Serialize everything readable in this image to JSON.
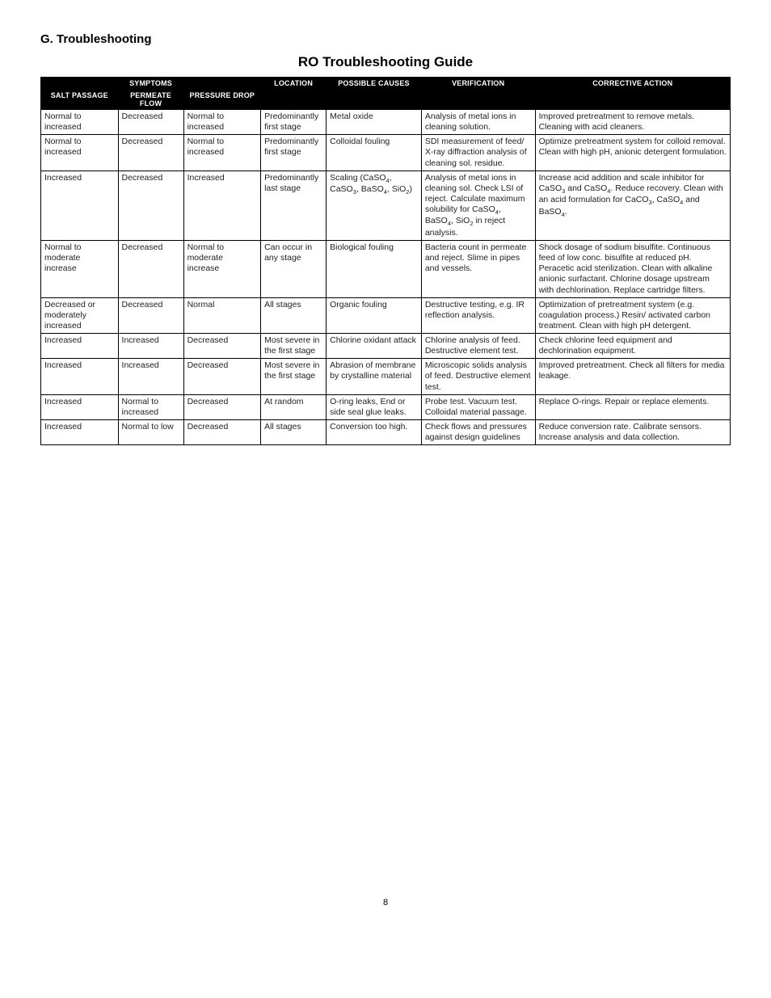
{
  "section_heading": "G. Troubleshooting",
  "table_title": "RO Troubleshooting Guide",
  "page_number": "8",
  "headers": {
    "symptoms": "SYMPTOMS",
    "salt_passage": "SALT PASSAGE",
    "permeate_flow": "PERMEATE FLOW",
    "pressure_drop": "PRESSURE DROP",
    "location": "LOCATION",
    "possible_causes": "POSSIBLE CAUSES",
    "verification": "VERIFICATION",
    "corrective_action": "CORRECTIVE ACTION"
  },
  "rows": [
    {
      "salt_passage": "Normal to increased",
      "permeate_flow": "Decreased",
      "pressure_drop": "Normal to increased",
      "location": "Predominantly first stage",
      "possible_causes": "Metal oxide",
      "verification": "Analysis of metal ions in cleaning solution.",
      "corrective_action": "Improved pretreatment to remove metals. Cleaning with acid cleaners."
    },
    {
      "salt_passage": "Normal to increased",
      "permeate_flow": "Decreased",
      "pressure_drop": "Normal to increased",
      "location": "Predominantly first stage",
      "possible_causes": "Colloidal fouling",
      "verification": "SDI measurement of feed/ X-ray diffraction analysis of cleaning sol. residue.",
      "corrective_action": "Optimize pretreatment system for colloid removal. Clean with high pH, anionic detergent formulation."
    },
    {
      "salt_passage": "Increased",
      "permeate_flow": "Decreased",
      "pressure_drop": "Increased",
      "location": "Predominantly last stage",
      "possible_causes_html": "Scaling (CaSO<sub>4</sub>, CaSO<sub>3</sub>, BaSO<sub>4</sub>, SiO<sub>2</sub>)",
      "verification_html": "Analysis of metal ions in cleaning sol. Check LSI of reject. Calculate maximum solubility for CaSO<sub>4</sub>, BaSO<sub>4</sub>, SiO<sub>2</sub> in reject analysis.",
      "corrective_action_html": "Increase acid addition and scale inhibitor for CaSO<sub>3</sub> and CaSO<sub>4</sub>. Reduce recovery. Clean with an acid formulation for CaCO<sub>3</sub>, CaSO<sub>4</sub> and BaSO<sub>4</sub>."
    },
    {
      "salt_passage": "Normal to moderate increase",
      "permeate_flow": "Decreased",
      "pressure_drop": "Normal to moderate increase",
      "location": "Can occur in any stage",
      "possible_causes": "Biological fouling",
      "verification": "Bacteria count in permeate and reject. Slime in pipes and vessels.",
      "corrective_action": "Shock dosage of sodium bisulfite. Continuous feed of low conc. bisulfite at reduced pH. Peracetic acid sterilization. Clean with alkaline anionic surfactant. Chlorine dosage upstream with dechlorination. Replace cartridge filters."
    },
    {
      "salt_passage": "Decreased or moderately increased",
      "permeate_flow": "Decreased",
      "pressure_drop": "Normal",
      "location": "All stages",
      "possible_causes": "Organic fouling",
      "verification": "Destructive testing, e.g. IR reflection analysis.",
      "corrective_action": "Optimization of pretreatment system (e.g. coagulation process.) Resin/ activated carbon treatment. Clean with high pH detergent."
    },
    {
      "salt_passage": "Increased",
      "permeate_flow": "Increased",
      "pressure_drop": "Decreased",
      "location": "Most severe in the first stage",
      "possible_causes": "Chlorine oxidant attack",
      "verification": "Chlorine analysis of feed. Destructive element test.",
      "corrective_action": "Check chlorine feed equipment and dechlorination equipment."
    },
    {
      "salt_passage": "Increased",
      "permeate_flow": "Increased",
      "pressure_drop": "Decreased",
      "location": "Most severe in the first stage",
      "possible_causes": "Abrasion of membrane by crystalline material",
      "verification": "Microscopic solids analysis of feed. Destructive element test.",
      "corrective_action": "Improved pretreatment. Check all filters for media leakage."
    },
    {
      "salt_passage": "Increased",
      "permeate_flow": "Normal to increased",
      "pressure_drop": "Decreased",
      "location": "At random",
      "possible_causes": "O-ring leaks, End or side seal glue leaks.",
      "verification": "Probe test. Vacuum test. Colloidal material passage.",
      "corrective_action": "Replace O-rings. Repair or replace elements."
    },
    {
      "salt_passage": "Increased",
      "permeate_flow": "Normal to low",
      "pressure_drop": "Decreased",
      "location": "All stages",
      "possible_causes": "Conversion too high.",
      "verification": "Check flows and pressures against design guidelines",
      "corrective_action": "Reduce conversion rate. Calibrate sensors. Increase analysis and data collection."
    }
  ]
}
